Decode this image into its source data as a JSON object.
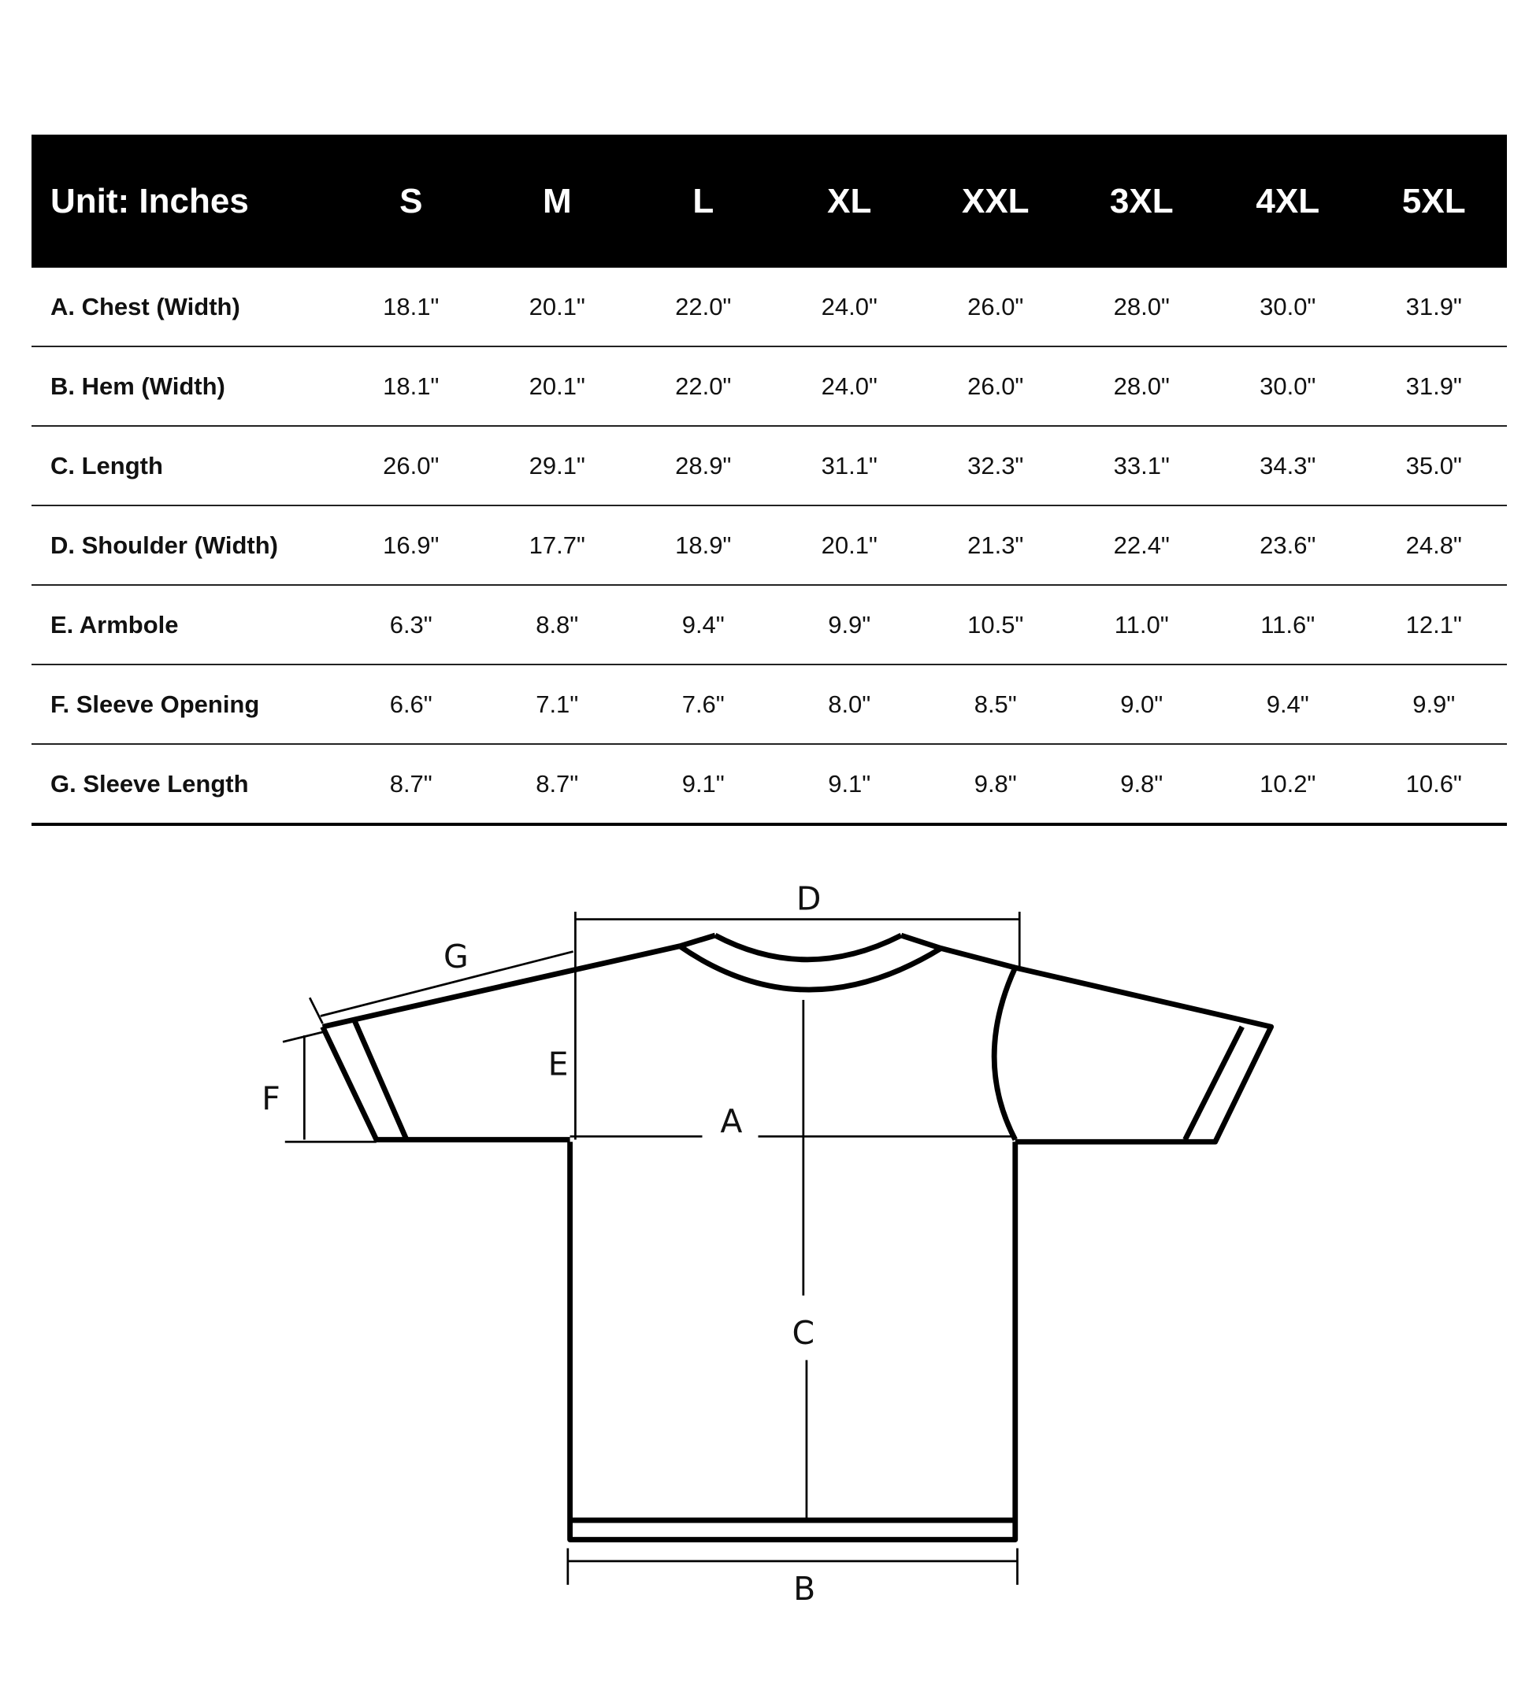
{
  "table": {
    "unit_label": "Unit: Inches",
    "sizes": [
      "S",
      "M",
      "L",
      "XL",
      "XXL",
      "3XL",
      "4XL",
      "5XL"
    ],
    "rows": [
      {
        "label": "A. Chest (Width)",
        "values": [
          "18.1\"",
          "20.1\"",
          "22.0\"",
          "24.0\"",
          "26.0\"",
          "28.0\"",
          "30.0\"",
          "31.9\""
        ]
      },
      {
        "label": "B. Hem (Width)",
        "values": [
          "18.1\"",
          "20.1\"",
          "22.0\"",
          "24.0\"",
          "26.0\"",
          "28.0\"",
          "30.0\"",
          "31.9\""
        ]
      },
      {
        "label": "C. Length",
        "values": [
          "26.0\"",
          "29.1\"",
          "28.9\"",
          "31.1\"",
          "32.3\"",
          "33.1\"",
          "34.3\"",
          "35.0\""
        ]
      },
      {
        "label": "D. Shoulder (Width)",
        "values": [
          "16.9\"",
          "17.7\"",
          "18.9\"",
          "20.1\"",
          "21.3\"",
          "22.4\"",
          "23.6\"",
          "24.8\""
        ]
      },
      {
        "label": "E. Armbole",
        "values": [
          "6.3\"",
          "8.8\"",
          "9.4\"",
          "9.9\"",
          "10.5\"",
          "11.0\"",
          "11.6\"",
          "12.1\""
        ]
      },
      {
        "label": "F. Sleeve Opening",
        "values": [
          "6.6\"",
          "7.1\"",
          "7.6\"",
          "8.0\"",
          "8.5\"",
          "9.0\"",
          "9.4\"",
          "9.9\""
        ]
      },
      {
        "label": "G. Sleeve Length",
        "values": [
          "8.7\"",
          "8.7\"",
          "9.1\"",
          "9.1\"",
          "9.8\"",
          "9.8\"",
          "10.2\"",
          "10.6\""
        ]
      }
    ]
  },
  "diagram": {
    "labels": {
      "A": "A",
      "B": "B",
      "C": "C",
      "D": "D",
      "E": "E",
      "F": "F",
      "G": "G"
    }
  }
}
